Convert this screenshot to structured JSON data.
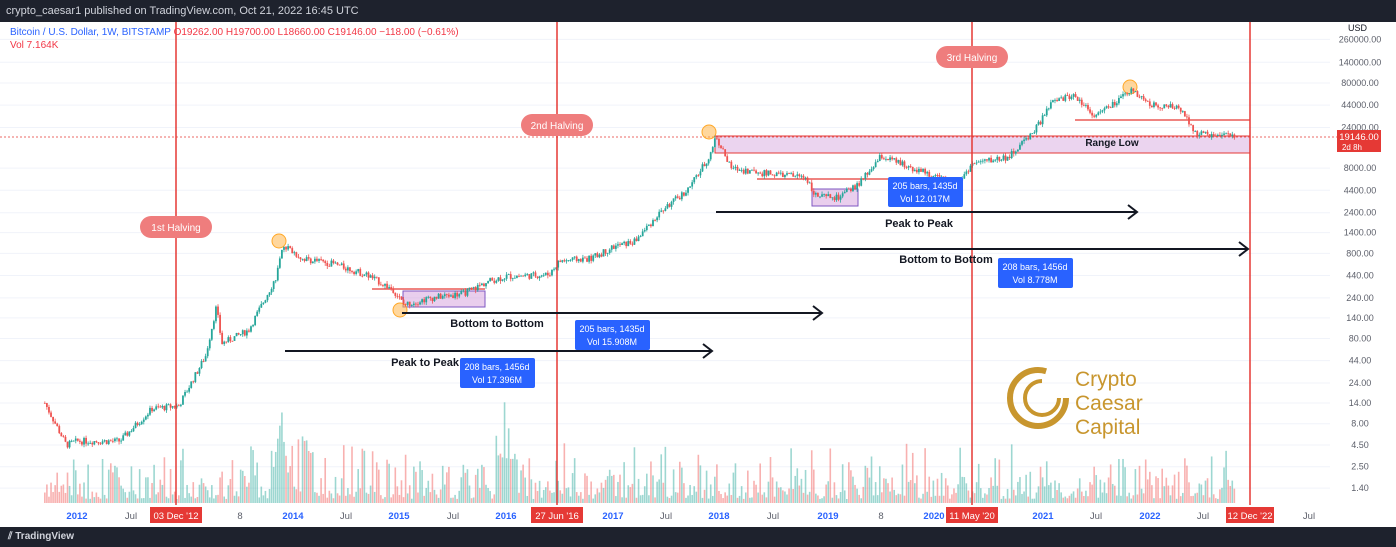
{
  "header": {
    "publisher": "crypto_caesar1 published on TradingView.com, Oct 21, 2022 16:45 UTC"
  },
  "legend": {
    "symbol": "Bitcoin / U.S. Dollar, 1W, BITSTAMP",
    "ohlc": "O19262.00  H19700.00  L18660.00  C19146.00  −118.00 (−0.61%)",
    "vol": "Vol 7.164K"
  },
  "footer": {
    "brand": "TradingView"
  },
  "colors": {
    "up": "#26a69a",
    "down": "#ef5350",
    "halving": "#e53935",
    "zone": "#e1bee7",
    "accent": "#2962ff",
    "gold": "#c8962e"
  },
  "chart_data": {
    "type": "candlestick",
    "title": "",
    "yscale": "log",
    "y_unit": "USD",
    "y_ticks": [
      "260000.00",
      "140000.00",
      "80000.00",
      "44000.00",
      "24000.00",
      "8000.00",
      "4400.00",
      "2400.00",
      "1400.00",
      "800.00",
      "440.00",
      "240.00",
      "140.00",
      "80.00",
      "44.00",
      "24.00",
      "14.00",
      "8.00",
      "4.50",
      "2.50",
      "1.40"
    ],
    "x_ticks": [
      "2012",
      "Jul",
      "8",
      "2014",
      "Jul",
      "2015",
      "Jul",
      "2016",
      "2017",
      "Jul",
      "2018",
      "Jul",
      "2019",
      "8",
      "2020",
      "2021",
      "Jul",
      "2022",
      "Jul",
      "Jul"
    ],
    "halvings": [
      {
        "label": "1st Halving",
        "date": "03 Dec '12"
      },
      {
        "label": "2nd Halving",
        "date": "27 Jun '16"
      },
      {
        "label": "3rd Halving",
        "date": "11 May '20"
      },
      {
        "label": "",
        "date": "12 Dec '22"
      }
    ],
    "price_path": [
      [
        2011.7,
        14
      ],
      [
        2011.9,
        4.5
      ],
      [
        2012.0,
        5
      ],
      [
        2012.4,
        5
      ],
      [
        2012.7,
        12
      ],
      [
        2012.95,
        13
      ],
      [
        2013.2,
        50
      ],
      [
        2013.3,
        190
      ],
      [
        2013.35,
        70
      ],
      [
        2013.6,
        100
      ],
      [
        2013.85,
        400
      ],
      [
        2013.93,
        1000
      ],
      [
        2014.1,
        700
      ],
      [
        2014.4,
        600
      ],
      [
        2014.7,
        450
      ],
      [
        2014.95,
        300
      ],
      [
        2015.05,
        200
      ],
      [
        2015.3,
        240
      ],
      [
        2015.6,
        270
      ],
      [
        2015.85,
        380
      ],
      [
        2016.0,
        430
      ],
      [
        2016.4,
        450
      ],
      [
        2016.5,
        650
      ],
      [
        2016.8,
        700
      ],
      [
        2017.0,
        950
      ],
      [
        2017.2,
        1100
      ],
      [
        2017.45,
        2500
      ],
      [
        2017.7,
        4500
      ],
      [
        2017.9,
        11000
      ],
      [
        2017.96,
        19000
      ],
      [
        2018.1,
        8000
      ],
      [
        2018.4,
        7000
      ],
      [
        2018.8,
        6300
      ],
      [
        2018.9,
        3700
      ],
      [
        2019.1,
        3600
      ],
      [
        2019.3,
        5300
      ],
      [
        2019.5,
        11000
      ],
      [
        2019.9,
        7200
      ],
      [
        2020.2,
        5000
      ],
      [
        2020.35,
        9000
      ],
      [
        2020.7,
        11000
      ],
      [
        2020.95,
        24000
      ],
      [
        2021.1,
        48000
      ],
      [
        2021.3,
        58000
      ],
      [
        2021.5,
        33000
      ],
      [
        2021.7,
        48000
      ],
      [
        2021.85,
        67000
      ],
      [
        2022.0,
        45000
      ],
      [
        2022.3,
        40000
      ],
      [
        2022.45,
        20000
      ],
      [
        2022.8,
        19146
      ]
    ],
    "annotations": {
      "range_low": "Range Low",
      "current_price": "19146.00",
      "countdown": "2d 8h",
      "labels": [
        "Bottom to Bottom",
        "Peak to Peak",
        "Peak to Peak",
        "Bottom to Bottom"
      ],
      "measures": [
        {
          "bars": "205 bars, 1435d",
          "vol": "Vol 15.908M"
        },
        {
          "bars": "208 bars, 1456d",
          "vol": "Vol 17.396M"
        },
        {
          "bars": "205 bars, 1435d",
          "vol": "Vol 12.017M"
        },
        {
          "bars": "208 bars, 1456d",
          "vol": "Vol 8.778M"
        }
      ]
    },
    "watermark": {
      "line1": "Crypto",
      "line2": "Caesar",
      "line3": "Capital"
    }
  }
}
